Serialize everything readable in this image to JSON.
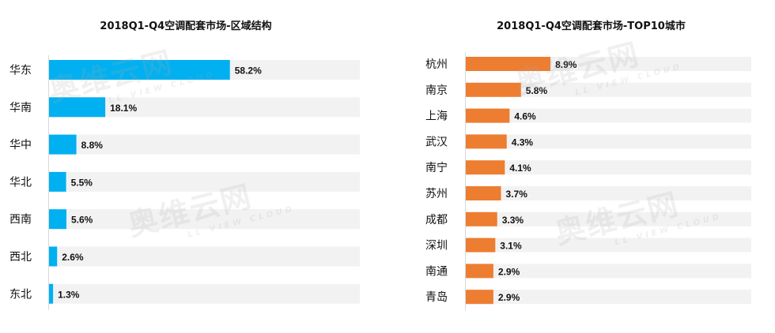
{
  "chart_data": [
    {
      "type": "bar",
      "orientation": "horizontal",
      "title": "2018Q1-Q4空调配套市场-区域结构",
      "categories": [
        "华东",
        "华南",
        "华中",
        "华北",
        "西南",
        "西北",
        "东北"
      ],
      "values": [
        58.2,
        18.1,
        8.8,
        5.5,
        5.6,
        2.6,
        1.3
      ],
      "labels": [
        "58.2%",
        "18.1%",
        "8.8%",
        "5.5%",
        "5.6%",
        "2.6%",
        "1.3%"
      ],
      "bar_color": "#00B0F0",
      "track_color": "#F2F2F2",
      "xlim": [
        0,
        100
      ]
    },
    {
      "type": "bar",
      "orientation": "horizontal",
      "title": "2018Q1-Q4空调配套市场-TOP10城市",
      "categories": [
        "杭州",
        "南京",
        "上海",
        "武汉",
        "南宁",
        "苏州",
        "成都",
        "深圳",
        "南通",
        "青岛"
      ],
      "values": [
        8.9,
        5.8,
        4.6,
        4.3,
        4.1,
        3.7,
        3.3,
        3.1,
        2.9,
        2.9
      ],
      "labels": [
        "8.9%",
        "5.8%",
        "4.6%",
        "4.3%",
        "4.1%",
        "3.7%",
        "3.3%",
        "3.1%",
        "2.9%",
        "2.9%"
      ],
      "bar_color": "#ED7D31",
      "track_color": "#F2F2F2",
      "xlim": [
        0,
        30
      ]
    }
  ],
  "watermark": {
    "text": "奥维云网",
    "subtext": "LL VIEW CLOUD"
  }
}
